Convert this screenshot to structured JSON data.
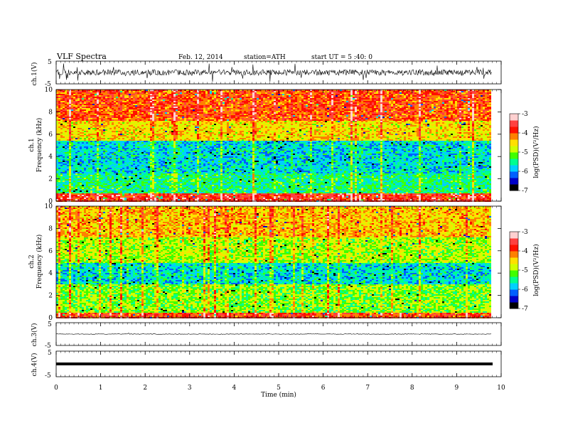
{
  "header": {
    "title": "VLF Spectra",
    "date": "Feb. 12, 2014",
    "station": "station=ATH",
    "start": "start  UT =  5 :40: 0"
  },
  "chart_data": [
    {
      "type": "line",
      "panel": "ch1-waveform",
      "ylabel": "ch.1(V)",
      "ylim": [
        -5,
        5
      ],
      "yticks": [
        "5",
        "-5"
      ]
    },
    {
      "type": "heatmap",
      "panel": "ch1-spectrogram",
      "ylabel_top": "ch.1",
      "ylabel": "Frequency (kHz)",
      "ylim": [
        0,
        10
      ],
      "yticks": [
        "0",
        "2",
        "4",
        "6",
        "8",
        "10"
      ],
      "colorbar": {
        "label": "log(PSD)(V²/Hz)",
        "range": [
          -7,
          -3
        ],
        "ticks": [
          "-3",
          "-4",
          "-5",
          "-6",
          "-7"
        ]
      }
    },
    {
      "type": "heatmap",
      "panel": "ch2-spectrogram",
      "ylabel_top": "ch.2",
      "ylabel": "Frequency (kHz)",
      "ylim": [
        0,
        10
      ],
      "yticks": [
        "0",
        "2",
        "4",
        "6",
        "8",
        "10"
      ],
      "colorbar": {
        "label": "log(PSD)(V²/Hz)",
        "range": [
          -7,
          -3
        ],
        "ticks": [
          "-3",
          "-4",
          "-5",
          "-6",
          "-7"
        ]
      }
    },
    {
      "type": "line",
      "panel": "ch3-waveform",
      "ylabel": "ch.3(V)",
      "ylim": [
        -5,
        5
      ],
      "yticks": [
        "5",
        "-5"
      ]
    },
    {
      "type": "line",
      "panel": "ch4-waveform",
      "ylabel": "ch.4(V)",
      "ylim": [
        -5,
        5
      ],
      "yticks": [
        "5",
        "-5"
      ]
    }
  ],
  "xaxis": {
    "label": "Time (min)",
    "ticks": [
      "0",
      "1",
      "2",
      "3",
      "4",
      "5",
      "6",
      "7",
      "8",
      "9",
      "10"
    ],
    "range": [
      0,
      10
    ],
    "data_end": 9.8
  },
  "colors": {
    "scale": [
      "#000000",
      "#0000c8",
      "#0060ff",
      "#00d0ff",
      "#00ff90",
      "#40ff00",
      "#d0ff00",
      "#ffe000",
      "#ff8000",
      "#ff1000",
      "#ff4040",
      "#ffd0d0"
    ]
  }
}
